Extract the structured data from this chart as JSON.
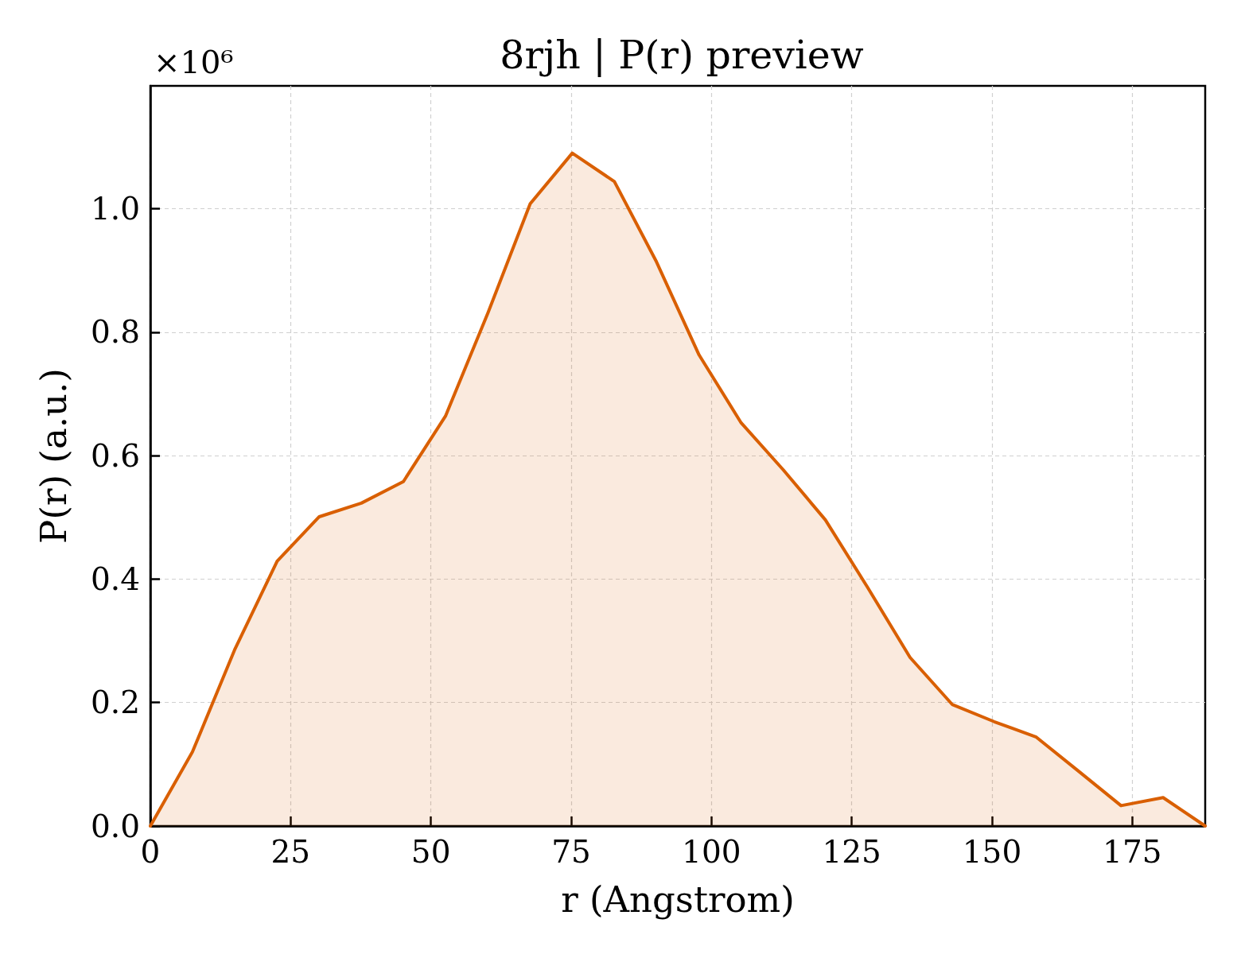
{
  "chart_data": {
    "type": "area",
    "title": "8rjh | P(r) preview",
    "xlabel": "r (Angstrom)",
    "ylabel": "P(r) (a.u.)",
    "x": [
      0,
      7.5,
      15,
      22.6,
      30.1,
      37.6,
      45.1,
      52.6,
      60.2,
      67.7,
      75.2,
      82.7,
      90.2,
      97.8,
      105.3,
      112.8,
      120.3,
      127.8,
      135.4,
      142.9,
      150.4,
      157.9,
      165.4,
      173,
      180.5,
      188
    ],
    "values": [
      0,
      0.12,
      0.285,
      0.429,
      0.501,
      0.523,
      0.558,
      0.664,
      0.832,
      1.008,
      1.09,
      1.044,
      0.914,
      0.763,
      0.653,
      0.577,
      0.496,
      0.387,
      0.273,
      0.197,
      0.169,
      0.144,
      0.089,
      0.033,
      0.046,
      0
    ],
    "color": "#d95f02",
    "xlim": [
      0,
      188
    ],
    "xticks": [
      0,
      25,
      50,
      75,
      100,
      125,
      150,
      175
    ],
    "ylim": [
      0,
      1.199
    ],
    "yticks": [
      {
        "value": 0,
        "label": "0.0"
      },
      0.2,
      0.4,
      0.6,
      0.8,
      {
        "value": 1,
        "label": "1.0"
      }
    ],
    "grid": true,
    "annotations": [
      "×10⁶"
    ]
  }
}
